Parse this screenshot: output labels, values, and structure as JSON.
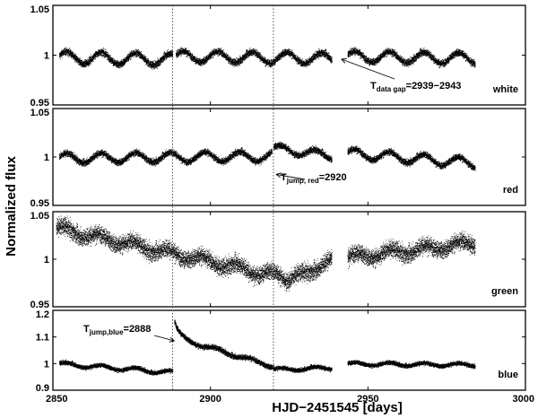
{
  "chart_data": {
    "type": "scatter",
    "xlabel": "HJD−2451545 [days]",
    "ylabel": "Normalized flux",
    "xlim": [
      2850,
      3000
    ],
    "xticks": [
      "2850",
      "2900",
      "2950",
      "3000"
    ],
    "shared_x": true,
    "vertical_dotted_lines_x": [
      2888,
      2920
    ],
    "panels": [
      {
        "label": "white",
        "ylim": [
          0.95,
          1.05
        ],
        "yticks": [
          "0.95",
          "1",
          "1.05"
        ],
        "series": [
          {
            "x_start": 2852,
            "x_end": 2888,
            "baseline": 0.998,
            "amplitude": 0.006,
            "period": 11,
            "phase": 0.3,
            "trend": -6e-05,
            "noise": 0.0018
          },
          {
            "x_start": 2889,
            "x_end": 2938.5,
            "baseline": 0.999,
            "amplitude": 0.0055,
            "period": 11,
            "phase": 0.3,
            "trend": -4e-05,
            "noise": 0.0018
          },
          {
            "x_start": 2943.5,
            "x_end": 2984,
            "baseline": 0.999,
            "amplitude": 0.0055,
            "period": 11,
            "phase": 0.3,
            "trend": -5e-05,
            "noise": 0.0018
          }
        ],
        "annotation": {
          "main": "T",
          "sub": "data gap",
          "tail": "=2939−2943",
          "arrow_to": [
            2941,
            0.996
          ]
        }
      },
      {
        "label": "red",
        "ylim": [
          0.95,
          1.05
        ],
        "yticks": [
          "0.95",
          "1",
          "1.05"
        ],
        "series": [
          {
            "x_start": 2852,
            "x_end": 2919.5,
            "baseline": 0.999,
            "amplitude": 0.005,
            "period": 11,
            "phase": 0.3,
            "trend": 3e-05,
            "noise": 0.0017
          },
          {
            "x_start": 2920,
            "x_end": 2938.5,
            "baseline": 1.009,
            "amplitude": 0.004,
            "period": 11,
            "phase": 0.3,
            "trend": -0.0004,
            "noise": 0.0017
          },
          {
            "x_start": 2943.5,
            "x_end": 2984,
            "baseline": 1.004,
            "amplitude": 0.005,
            "period": 11,
            "phase": 0.3,
            "trend": -0.00025,
            "noise": 0.0017
          }
        ],
        "annotation": {
          "main": "T",
          "sub": "jump, red",
          "tail": "=2920",
          "arrow_to": [
            2920,
            0.982
          ]
        }
      },
      {
        "label": "green",
        "ylim": [
          0.95,
          1.05
        ],
        "yticks": [
          "0.95",
          "1",
          "1.05"
        ],
        "series": [
          {
            "x_start": 2851,
            "x_end": 2925,
            "baseline": 1.033,
            "amplitude": 0.004,
            "period": 11,
            "phase": 0.1,
            "trend": -0.00072,
            "noise": 0.0045
          },
          {
            "x_start": 2925,
            "x_end": 2938.5,
            "baseline": 0.978,
            "amplitude": 0.003,
            "period": 11,
            "phase": 0.1,
            "trend": 0.0016,
            "noise": 0.0045
          },
          {
            "x_start": 2943.5,
            "x_end": 2984,
            "baseline": 1.002,
            "amplitude": 0.004,
            "period": 11,
            "phase": 0.1,
            "trend": 0.00038,
            "noise": 0.0045
          }
        ]
      },
      {
        "label": "blue",
        "ylim": [
          0.9,
          1.2
        ],
        "yticks": [
          "0.9",
          "1",
          "1.1",
          "1.2"
        ],
        "series": [
          {
            "x_start": 2852,
            "x_end": 2888,
            "baseline": 1.0,
            "amplitude": 0.007,
            "period": 11,
            "phase": 0.3,
            "trend": -0.0009,
            "noise": 0.004
          },
          {
            "x_start": 2888.5,
            "x_end": 2920,
            "baseline": 1.1,
            "amplitude": 0.006,
            "period": 11,
            "phase": 0.3,
            "trend": -0.0035,
            "noise": 0.005,
            "decay_peak": 0.06,
            "decay_tau": 1.5
          },
          {
            "x_start": 2920,
            "x_end": 2938.5,
            "baseline": 0.978,
            "amplitude": 0.006,
            "period": 11,
            "phase": 0.3,
            "trend": 0.0004,
            "noise": 0.004
          },
          {
            "x_start": 2943.5,
            "x_end": 2984,
            "baseline": 1.0,
            "amplitude": 0.006,
            "period": 11,
            "phase": 0.3,
            "trend": -0.0001,
            "noise": 0.004
          }
        ],
        "annotation": {
          "main": "T",
          "sub": "jump,blue",
          "tail": "=2888",
          "arrow_to": [
            2888,
            1.085
          ]
        }
      }
    ]
  }
}
